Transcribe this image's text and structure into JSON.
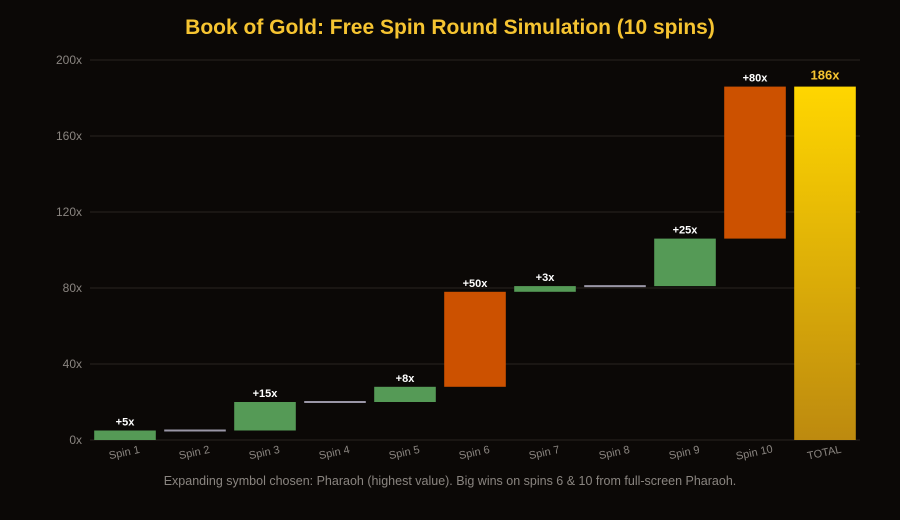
{
  "chart_data": {
    "type": "bar",
    "subtype": "waterfall",
    "title": "Book of Gold: Free Spin Round Simulation (10 spins)",
    "categories": [
      "Spin 1",
      "Spin 2",
      "Spin 3",
      "Spin 4",
      "Spin 5",
      "Spin 6",
      "Spin 7",
      "Spin 8",
      "Spin 9",
      "Spin 10"
    ],
    "values": [
      5,
      0,
      15,
      0,
      8,
      50,
      3,
      0,
      25,
      80
    ],
    "data_labels": [
      "+5x",
      "",
      "+15x",
      "",
      "+8x",
      "+50x",
      "+3x",
      "",
      "+25x",
      "+80x"
    ],
    "total": {
      "category": "TOTAL",
      "value": 186,
      "label": "186x"
    },
    "y_ticks": [
      "0x",
      "40x",
      "80x",
      "120x",
      "160x",
      "200x"
    ],
    "ylim": [
      0,
      200
    ],
    "xlabel": "",
    "ylabel": "",
    "grid": true,
    "caption": "Expanding symbol chosen: Pharaoh (highest value). Big wins on spins 6 & 10 from full-screen Pharaoh.",
    "colors": {
      "background": "#0b0806",
      "title": "#f6c431",
      "small_win": "#559a56",
      "big_win": "#cc5100",
      "zero_line": "#9a96a6",
      "total_top": "#ffd600",
      "total_bottom": "#bd8a0f",
      "total_label": "#f6c431",
      "grid": "#2a2420"
    },
    "big_win_threshold": 50
  }
}
